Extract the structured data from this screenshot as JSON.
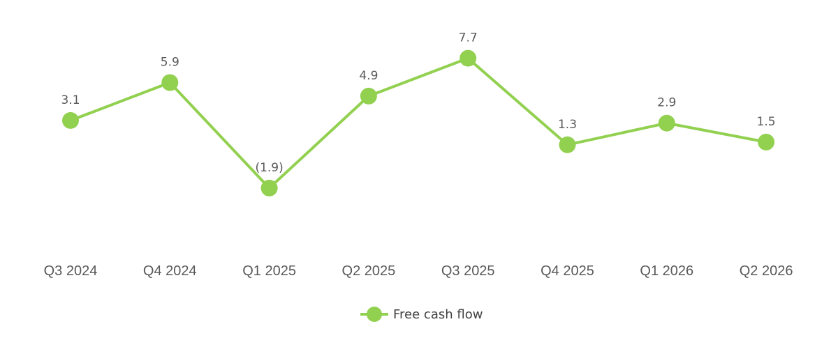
{
  "chart_data": {
    "type": "line",
    "categories": [
      "Q3 2024",
      "Q4 2024",
      "Q1 2025",
      "Q2 2025",
      "Q3 2025",
      "Q4 2025",
      "Q1 2026",
      "Q2 2026"
    ],
    "series": [
      {
        "name": "Free cash flow",
        "values": [
          3.1,
          5.9,
          -1.9,
          4.9,
          7.7,
          1.3,
          2.9,
          1.5
        ],
        "data_labels": [
          "3.1",
          "5.9",
          "(1.9)",
          "4.9",
          "7.7",
          "1.3",
          "2.9",
          "1.5"
        ],
        "color": "#92d050"
      }
    ],
    "title": "",
    "xlabel": "",
    "ylabel": "",
    "grid": false,
    "legend": "bottom-center"
  }
}
